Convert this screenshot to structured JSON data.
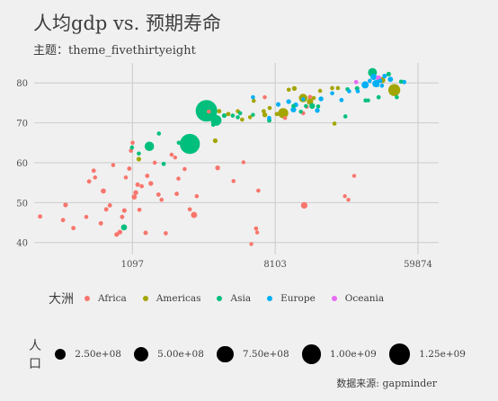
{
  "title": "人均gdp vs. 预期寿命",
  "subtitle": "主题：theme_fivethirtyeight",
  "caption": "数据来源: gapminder",
  "chart_data": {
    "type": "scatter",
    "x_scale": "log",
    "xlim": [
      277,
      80000
    ],
    "ylim": [
      37,
      85
    ],
    "x_ticks": [
      1097,
      8103,
      59874
    ],
    "x_tick_labels": [
      "1097",
      "8103",
      "59874"
    ],
    "y_ticks": [
      40,
      50,
      60,
      70,
      80
    ],
    "y_tick_labels": [
      "40",
      "50",
      "60",
      "70",
      "80"
    ],
    "grid": true,
    "color_legend": {
      "title": "大洲",
      "entries": [
        {
          "name": "Africa",
          "color": "#F8766D"
        },
        {
          "name": "Americas",
          "color": "#A3A500"
        },
        {
          "name": "Asia",
          "color": "#00BF7D"
        },
        {
          "name": "Europe",
          "color": "#00B0F6"
        },
        {
          "name": "Oceania",
          "color": "#E76BF3"
        }
      ]
    },
    "size_legend": {
      "title": "人口",
      "entries": [
        {
          "label": "2.50e+08",
          "value": 250000000
        },
        {
          "label": "5.00e+08",
          "value": 500000000
        },
        {
          "label": "7.50e+08",
          "value": 750000000
        },
        {
          "label": "1.00e+09",
          "value": 1000000000
        },
        {
          "label": "1.25e+09",
          "value": 1250000000
        }
      ]
    },
    "series": [
      {
        "name": "Africa",
        "points": [
          [
            301,
            46.5,
            5000000.0
          ],
          [
            415,
            45.6,
            5000000.0
          ],
          [
            430,
            49.4,
            8000000.0
          ],
          [
            480,
            43.6,
            5000000.0
          ],
          [
            575,
            46.4,
            3000000.0
          ],
          [
            598,
            55.3,
            5000000.0
          ],
          [
            638,
            58,
            5000000.0
          ],
          [
            650,
            56.3,
            3000000.0
          ],
          [
            705,
            44.8,
            5000000.0
          ],
          [
            730,
            52.9,
            14000000.0
          ],
          [
            760,
            48.3,
            5000000.0
          ],
          [
            800,
            49.3,
            5000000.0
          ],
          [
            838,
            59.4,
            3000000.0
          ],
          [
            880,
            42,
            8000000.0
          ],
          [
            920,
            42.6,
            10000000.0
          ],
          [
            950,
            46.4,
            5000000.0
          ],
          [
            980,
            48,
            7000000.0
          ],
          [
            1000,
            56.3,
            3000000.0
          ],
          [
            1050,
            58.5,
            5000000.0
          ],
          [
            1075,
            63,
            4000000.0
          ],
          [
            1100,
            65,
            3000000.0
          ],
          [
            1125,
            51.4,
            14000000.0
          ],
          [
            1150,
            52.5,
            10000000.0
          ],
          [
            1180,
            54.5,
            6000000.0
          ],
          [
            1210,
            48.2,
            4000000.0
          ],
          [
            1250,
            54.1,
            4000000.0
          ],
          [
            1320,
            42.4,
            6000000.0
          ],
          [
            1350,
            56.7,
            5000000.0
          ],
          [
            1420,
            54.8,
            10000000.0
          ],
          [
            1500,
            60,
            3000000.0
          ],
          [
            1580,
            52,
            5000000.0
          ],
          [
            1650,
            50.7,
            3000000.0
          ],
          [
            1750,
            42.3,
            4000000.0
          ],
          [
            1900,
            62,
            3000000.0
          ],
          [
            1995,
            61.3,
            2000000.0
          ],
          [
            2040,
            52.2,
            5000000.0
          ],
          [
            2090,
            56,
            3000000.0
          ],
          [
            2280,
            58.4,
            3000000.0
          ],
          [
            2450,
            48.3,
            4000000.0
          ],
          [
            2600,
            46.9,
            35000000.0
          ],
          [
            2700,
            51.6,
            3000000.0
          ],
          [
            3200,
            72.8,
            3000000.0
          ],
          [
            3620,
            58.7,
            10000000.0
          ],
          [
            4520,
            55.4,
            3000000.0
          ],
          [
            5200,
            60.1,
            2000000.0
          ],
          [
            6200,
            43.5,
            4000000.0
          ],
          [
            6400,
            53,
            3000000.0
          ],
          [
            5800,
            39.6,
            2000000.0
          ],
          [
            6300,
            42.5,
            2000000.0
          ],
          [
            7000,
            76.4,
            3000000.0
          ],
          [
            9300,
            71.2,
            3000000.0
          ],
          [
            12000,
            72.4,
            3000000.0
          ],
          [
            12600,
            74,
            3000000.0
          ],
          [
            12170,
            49.3,
            44000000.0
          ],
          [
            13200,
            76.5,
            2000000.0
          ],
          [
            21500,
            51.6,
            2000000.0
          ],
          [
            22600,
            50.7,
            2000000.0
          ],
          [
            24500,
            56.7,
            2000000.0
          ]
        ]
      },
      {
        "name": "Americas",
        "points": [
          [
            1200,
            60.9,
            8000000.0
          ],
          [
            3500,
            65.5,
            9000000.0
          ],
          [
            3700,
            72.9,
            5000000.0
          ],
          [
            4200,
            72.2,
            5000000.0
          ],
          [
            4800,
            72.9,
            3000000.0
          ],
          [
            5100,
            70.8,
            3000000.0
          ],
          [
            5700,
            71.4,
            3000000.0
          ],
          [
            6000,
            75.5,
            3000000.0
          ],
          [
            6900,
            72.9,
            4000000.0
          ],
          [
            7008,
            72,
            10000000.0
          ],
          [
            7500,
            73.7,
            3000000.0
          ],
          [
            8300,
            72.2,
            4000000.0
          ],
          [
            9065,
            72.4,
            190000000.0
          ],
          [
            9800,
            78.3,
            3000000.0
          ],
          [
            10600,
            78.6,
            10000000.0
          ],
          [
            11978,
            76.2,
            110000000.0
          ],
          [
            13200,
            75.3,
            40000000.0
          ],
          [
            13172,
            76.4,
            3000000.0
          ],
          [
            13900,
            76.2,
            3000000.0
          ],
          [
            15200,
            78,
            3000000.0
          ],
          [
            18000,
            78.7,
            3000000.0
          ],
          [
            18600,
            69.8,
            3000000.0
          ],
          [
            19500,
            78.7,
            3000000.0
          ],
          [
            36300,
            80.7,
            33000000.0
          ],
          [
            42951,
            78.2,
            301000000.0
          ]
        ]
      },
      {
        "name": "Asia",
        "points": [
          [
            975,
            43.8,
            31000000.0
          ],
          [
            1090,
            63.8,
            3000000.0
          ],
          [
            1200,
            62.3,
            3000000.0
          ],
          [
            1391,
            64.1,
            150000000.0
          ],
          [
            1590,
            67.3,
            3000000.0
          ],
          [
            1700,
            59.7,
            4000000.0
          ],
          [
            2100,
            65,
            3000000.0
          ],
          [
            2452,
            64.7,
            1110000000.0
          ],
          [
            2605,
            65.2,
            3000000.0
          ],
          [
            3095,
            73,
            1318000000.0
          ],
          [
            3000,
            74.2,
            3000000.0
          ],
          [
            3400,
            69.5,
            3000000.0
          ],
          [
            3541,
            70.6,
            223000000.0
          ],
          [
            3970,
            71.8,
            8000000.0
          ],
          [
            4471,
            71.8,
            3000000.0
          ],
          [
            4800,
            71.4,
            3000000.0
          ],
          [
            4959,
            72.4,
            3000000.0
          ],
          [
            5937,
            72,
            2000000.0
          ],
          [
            7458,
            70.6,
            6000000.0
          ],
          [
            10462,
            74.2,
            3000000.0
          ],
          [
            11605,
            72.8,
            2000000.0
          ],
          [
            12452,
            74.2,
            2000000.0
          ],
          [
            13600,
            74.2,
            24000000.0
          ],
          [
            14800,
            74.1,
            3000000.0
          ],
          [
            21654,
            71.6,
            3000000.0
          ],
          [
            22316,
            78.4,
            3000000.0
          ],
          [
            25523,
            78.6,
            7000000.0
          ],
          [
            28718,
            75.6,
            3000000.0
          ],
          [
            29796,
            75.6,
            2000000.0
          ],
          [
            31656,
            82.6,
            127000000.0
          ],
          [
            34500,
            76.4,
            4000000.0
          ],
          [
            39725,
            82.2,
            7000000.0
          ],
          [
            44500,
            76.4,
            3000000.0
          ],
          [
            47307,
            80.3,
            4000000.0
          ]
        ]
      },
      {
        "name": "Europe",
        "points": [
          [
            5937,
            76.4,
            3000000.0
          ],
          [
            7446,
            71.2,
            4000000.0
          ],
          [
            8458,
            74.6,
            7000000.0
          ],
          [
            9786,
            75.3,
            9000000.0
          ],
          [
            10461,
            73.3,
            22000000.0
          ],
          [
            10808,
            74.5,
            10000000.0
          ],
          [
            12000,
            75.9,
            2000000.0
          ],
          [
            14619,
            73.1,
            10000000.0
          ],
          [
            15390,
            76,
            10000000.0
          ],
          [
            18009,
            77.4,
            3000000.0
          ],
          [
            20510,
            75.7,
            4000000.0
          ],
          [
            22833,
            77.9,
            3000000.0
          ],
          [
            25768,
            77.9,
            3000000.0
          ],
          [
            28570,
            79.5,
            61000000.0
          ],
          [
            30470,
            80.5,
            3000000.0
          ],
          [
            32170,
            81.5,
            40000000.0
          ],
          [
            33203,
            79.8,
            60000000.0
          ],
          [
            33692,
            80.2,
            10000000.0
          ],
          [
            33860,
            79.4,
            2000000.0
          ],
          [
            35278,
            80.5,
            5000000.0
          ],
          [
            36126,
            79.3,
            3000000.0
          ],
          [
            37506,
            81.7,
            8000000.0
          ],
          [
            40676,
            80.9,
            16000000.0
          ],
          [
            49357,
            80.2,
            5000000.0
          ]
        ]
      },
      {
        "name": "Oceania",
        "points": [
          [
            25185,
            80.2,
            4000000.0
          ],
          [
            34435,
            81.2,
            20000000.0
          ]
        ]
      }
    ]
  }
}
